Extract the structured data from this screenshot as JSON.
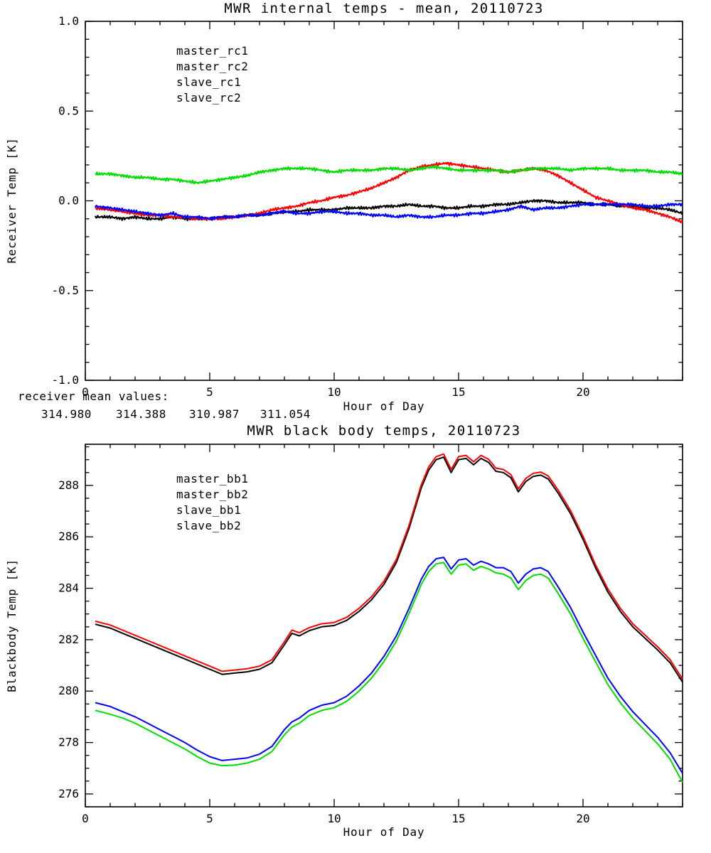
{
  "page": {
    "background": "#ffffff"
  },
  "annotations": {
    "receiver_mean_label": "receiver mean values:",
    "receiver_means": [
      {
        "value": "314.980",
        "color": "#000000"
      },
      {
        "value": "314.388",
        "color": "#ff0000"
      },
      {
        "value": "310.987",
        "color": "#0000ff"
      },
      {
        "value": "311.054",
        "color": "#00dd00"
      }
    ]
  },
  "chart_data": [
    {
      "type": "line",
      "title": "MWR internal temps - mean, 20110723",
      "xlabel": "Hour of Day",
      "ylabel": "Receiver Temp [K]",
      "xlim": [
        0,
        24
      ],
      "ylim": [
        -1.0,
        1.0
      ],
      "xticks": [
        0,
        5,
        10,
        15,
        20
      ],
      "xtick_labels": [
        "0",
        "5",
        "10",
        "15",
        "20"
      ],
      "xminor": 1,
      "yticks": [
        -1.0,
        -0.5,
        0.0,
        0.5,
        1.0
      ],
      "ytick_labels": [
        "-1.0",
        "-0.5",
        "0.0",
        "0.5",
        "1.0"
      ],
      "yminor": 0.1,
      "grid": false,
      "legend_position": "upper-left-inside",
      "x": [
        0.4,
        1,
        1.5,
        2,
        2.5,
        3,
        3.5,
        4,
        4.5,
        5,
        5.5,
        6,
        6.5,
        7,
        7.5,
        8,
        8.5,
        9,
        9.5,
        10,
        10.5,
        11,
        11.5,
        12,
        12.5,
        13,
        13.5,
        14,
        14.5,
        15,
        15.5,
        16,
        16.5,
        17,
        17.5,
        18,
        18.5,
        19,
        19.5,
        20,
        20.5,
        21,
        21.5,
        22,
        22.5,
        23,
        23.5,
        24
      ],
      "series": [
        {
          "name": "master_rc1",
          "color": "#000000",
          "values": [
            -0.09,
            -0.09,
            -0.1,
            -0.09,
            -0.1,
            -0.1,
            -0.09,
            -0.1,
            -0.1,
            -0.1,
            -0.09,
            -0.09,
            -0.08,
            -0.08,
            -0.07,
            -0.06,
            -0.06,
            -0.05,
            -0.05,
            -0.05,
            -0.04,
            -0.04,
            -0.04,
            -0.03,
            -0.03,
            -0.02,
            -0.03,
            -0.03,
            -0.04,
            -0.04,
            -0.03,
            -0.03,
            -0.02,
            -0.02,
            -0.01,
            0.0,
            0.0,
            -0.01,
            -0.01,
            -0.01,
            -0.02,
            -0.02,
            -0.03,
            -0.03,
            -0.04,
            -0.04,
            -0.05,
            -0.07
          ]
        },
        {
          "name": "master_rc2",
          "color": "#ff0000",
          "values": [
            -0.04,
            -0.05,
            -0.06,
            -0.07,
            -0.08,
            -0.08,
            -0.09,
            -0.09,
            -0.1,
            -0.1,
            -0.1,
            -0.09,
            -0.08,
            -0.07,
            -0.05,
            -0.04,
            -0.03,
            -0.01,
            0.0,
            0.02,
            0.03,
            0.05,
            0.07,
            0.1,
            0.13,
            0.17,
            0.19,
            0.2,
            0.21,
            0.2,
            0.19,
            0.18,
            0.17,
            0.16,
            0.17,
            0.18,
            0.17,
            0.14,
            0.1,
            0.06,
            0.02,
            0.0,
            -0.02,
            -0.04,
            -0.05,
            -0.07,
            -0.09,
            -0.12
          ]
        },
        {
          "name": "slave_rc1",
          "color": "#0000ff",
          "values": [
            -0.03,
            -0.04,
            -0.05,
            -0.06,
            -0.07,
            -0.08,
            -0.07,
            -0.09,
            -0.09,
            -0.1,
            -0.09,
            -0.09,
            -0.08,
            -0.08,
            -0.07,
            -0.06,
            -0.07,
            -0.07,
            -0.06,
            -0.06,
            -0.07,
            -0.07,
            -0.08,
            -0.08,
            -0.09,
            -0.08,
            -0.09,
            -0.09,
            -0.08,
            -0.08,
            -0.07,
            -0.07,
            -0.06,
            -0.05,
            -0.03,
            -0.05,
            -0.04,
            -0.04,
            -0.03,
            -0.02,
            -0.02,
            -0.02,
            -0.02,
            -0.02,
            -0.03,
            -0.03,
            -0.02,
            -0.02
          ]
        },
        {
          "name": "slave_rc2",
          "color": "#00dd00",
          "values": [
            0.15,
            0.15,
            0.14,
            0.13,
            0.13,
            0.12,
            0.12,
            0.11,
            0.1,
            0.11,
            0.12,
            0.13,
            0.14,
            0.16,
            0.17,
            0.18,
            0.18,
            0.18,
            0.17,
            0.16,
            0.17,
            0.17,
            0.17,
            0.18,
            0.18,
            0.17,
            0.18,
            0.19,
            0.18,
            0.17,
            0.17,
            0.17,
            0.17,
            0.16,
            0.17,
            0.18,
            0.18,
            0.18,
            0.17,
            0.18,
            0.18,
            0.18,
            0.17,
            0.17,
            0.17,
            0.16,
            0.16,
            0.15
          ]
        }
      ]
    },
    {
      "type": "line",
      "title": "MWR black body temps, 20110723",
      "xlabel": "Hour of Day",
      "ylabel": "Blackbody Temp [K]",
      "xlim": [
        0,
        24
      ],
      "ylim": [
        275.5,
        289.6
      ],
      "xticks": [
        0,
        5,
        10,
        15,
        20
      ],
      "xtick_labels": [
        "0",
        "5",
        "10",
        "15",
        "20"
      ],
      "xminor": 1,
      "yticks": [
        276,
        278,
        280,
        282,
        284,
        286,
        288
      ],
      "ytick_labels": [
        "276",
        "278",
        "280",
        "282",
        "284",
        "286",
        "288"
      ],
      "yminor": 0.5,
      "grid": false,
      "legend_position": "upper-left-inside",
      "x": [
        0.4,
        1,
        1.5,
        2,
        2.5,
        3,
        3.5,
        4,
        4.5,
        5,
        5.5,
        6,
        6.5,
        7,
        7.5,
        8,
        8.3,
        8.6,
        9,
        9.5,
        10,
        10.5,
        11,
        11.5,
        12,
        12.5,
        13,
        13.5,
        13.8,
        14.1,
        14.4,
        14.7,
        15,
        15.3,
        15.6,
        15.9,
        16.2,
        16.5,
        16.8,
        17.1,
        17.4,
        17.7,
        18,
        18.3,
        18.6,
        19,
        19.5,
        20,
        20.5,
        21,
        21.5,
        22,
        22.5,
        23,
        23.5,
        24
      ],
      "series": [
        {
          "name": "master_bb1",
          "color": "#000000",
          "values": [
            282.6,
            282.45,
            282.25,
            282.05,
            281.85,
            281.65,
            281.45,
            281.25,
            281.05,
            280.85,
            280.65,
            280.7,
            280.75,
            280.85,
            281.1,
            281.8,
            282.25,
            282.15,
            282.35,
            282.5,
            282.55,
            282.75,
            283.1,
            283.55,
            284.15,
            285.0,
            286.3,
            287.9,
            288.6,
            289.0,
            289.1,
            288.5,
            289.0,
            289.05,
            288.8,
            289.05,
            288.9,
            288.55,
            288.5,
            288.3,
            287.75,
            288.15,
            288.35,
            288.4,
            288.25,
            287.7,
            286.9,
            285.9,
            284.8,
            283.85,
            283.1,
            282.5,
            282.05,
            281.6,
            281.1,
            280.35
          ]
        },
        {
          "name": "master_bb2",
          "color": "#ff0000",
          "values": [
            282.72,
            282.57,
            282.37,
            282.17,
            281.97,
            281.77,
            281.57,
            281.37,
            281.17,
            280.97,
            280.77,
            280.82,
            280.87,
            280.97,
            281.22,
            281.92,
            282.37,
            282.27,
            282.47,
            282.62,
            282.67,
            282.87,
            283.22,
            283.67,
            284.27,
            285.12,
            286.42,
            288.02,
            288.72,
            289.12,
            289.22,
            288.62,
            289.12,
            289.17,
            288.92,
            289.17,
            289.02,
            288.67,
            288.62,
            288.42,
            287.87,
            288.27,
            288.47,
            288.52,
            288.37,
            287.82,
            287.02,
            286.02,
            284.92,
            283.97,
            283.22,
            282.62,
            282.17,
            281.72,
            281.22,
            280.47
          ]
        },
        {
          "name": "slave_bb1",
          "color": "#0000ff",
          "values": [
            279.55,
            279.4,
            279.2,
            279.0,
            278.75,
            278.5,
            278.25,
            278.0,
            277.7,
            277.45,
            277.3,
            277.35,
            277.4,
            277.55,
            277.85,
            278.5,
            278.8,
            278.95,
            279.25,
            279.45,
            279.55,
            279.8,
            280.2,
            280.7,
            281.35,
            282.15,
            283.2,
            284.35,
            284.85,
            285.15,
            285.2,
            284.75,
            285.1,
            285.15,
            284.9,
            285.05,
            284.95,
            284.8,
            284.8,
            284.65,
            284.2,
            284.55,
            284.75,
            284.8,
            284.65,
            284.05,
            283.25,
            282.3,
            281.4,
            280.5,
            279.8,
            279.2,
            278.7,
            278.2,
            277.6,
            276.8
          ]
        },
        {
          "name": "slave_bb2",
          "color": "#00dd00",
          "values": [
            279.25,
            279.1,
            278.95,
            278.75,
            278.5,
            278.25,
            278.0,
            277.75,
            277.45,
            277.2,
            277.1,
            277.12,
            277.2,
            277.35,
            277.65,
            278.3,
            278.6,
            278.75,
            279.05,
            279.25,
            279.35,
            279.6,
            280.0,
            280.5,
            281.15,
            281.95,
            283.0,
            284.15,
            284.65,
            284.95,
            285.0,
            284.55,
            284.9,
            284.95,
            284.7,
            284.85,
            284.75,
            284.6,
            284.55,
            284.4,
            283.95,
            284.3,
            284.5,
            284.55,
            284.4,
            283.8,
            283.0,
            282.05,
            281.15,
            280.25,
            279.55,
            278.95,
            278.45,
            277.95,
            277.35,
            276.45
          ]
        }
      ]
    }
  ]
}
